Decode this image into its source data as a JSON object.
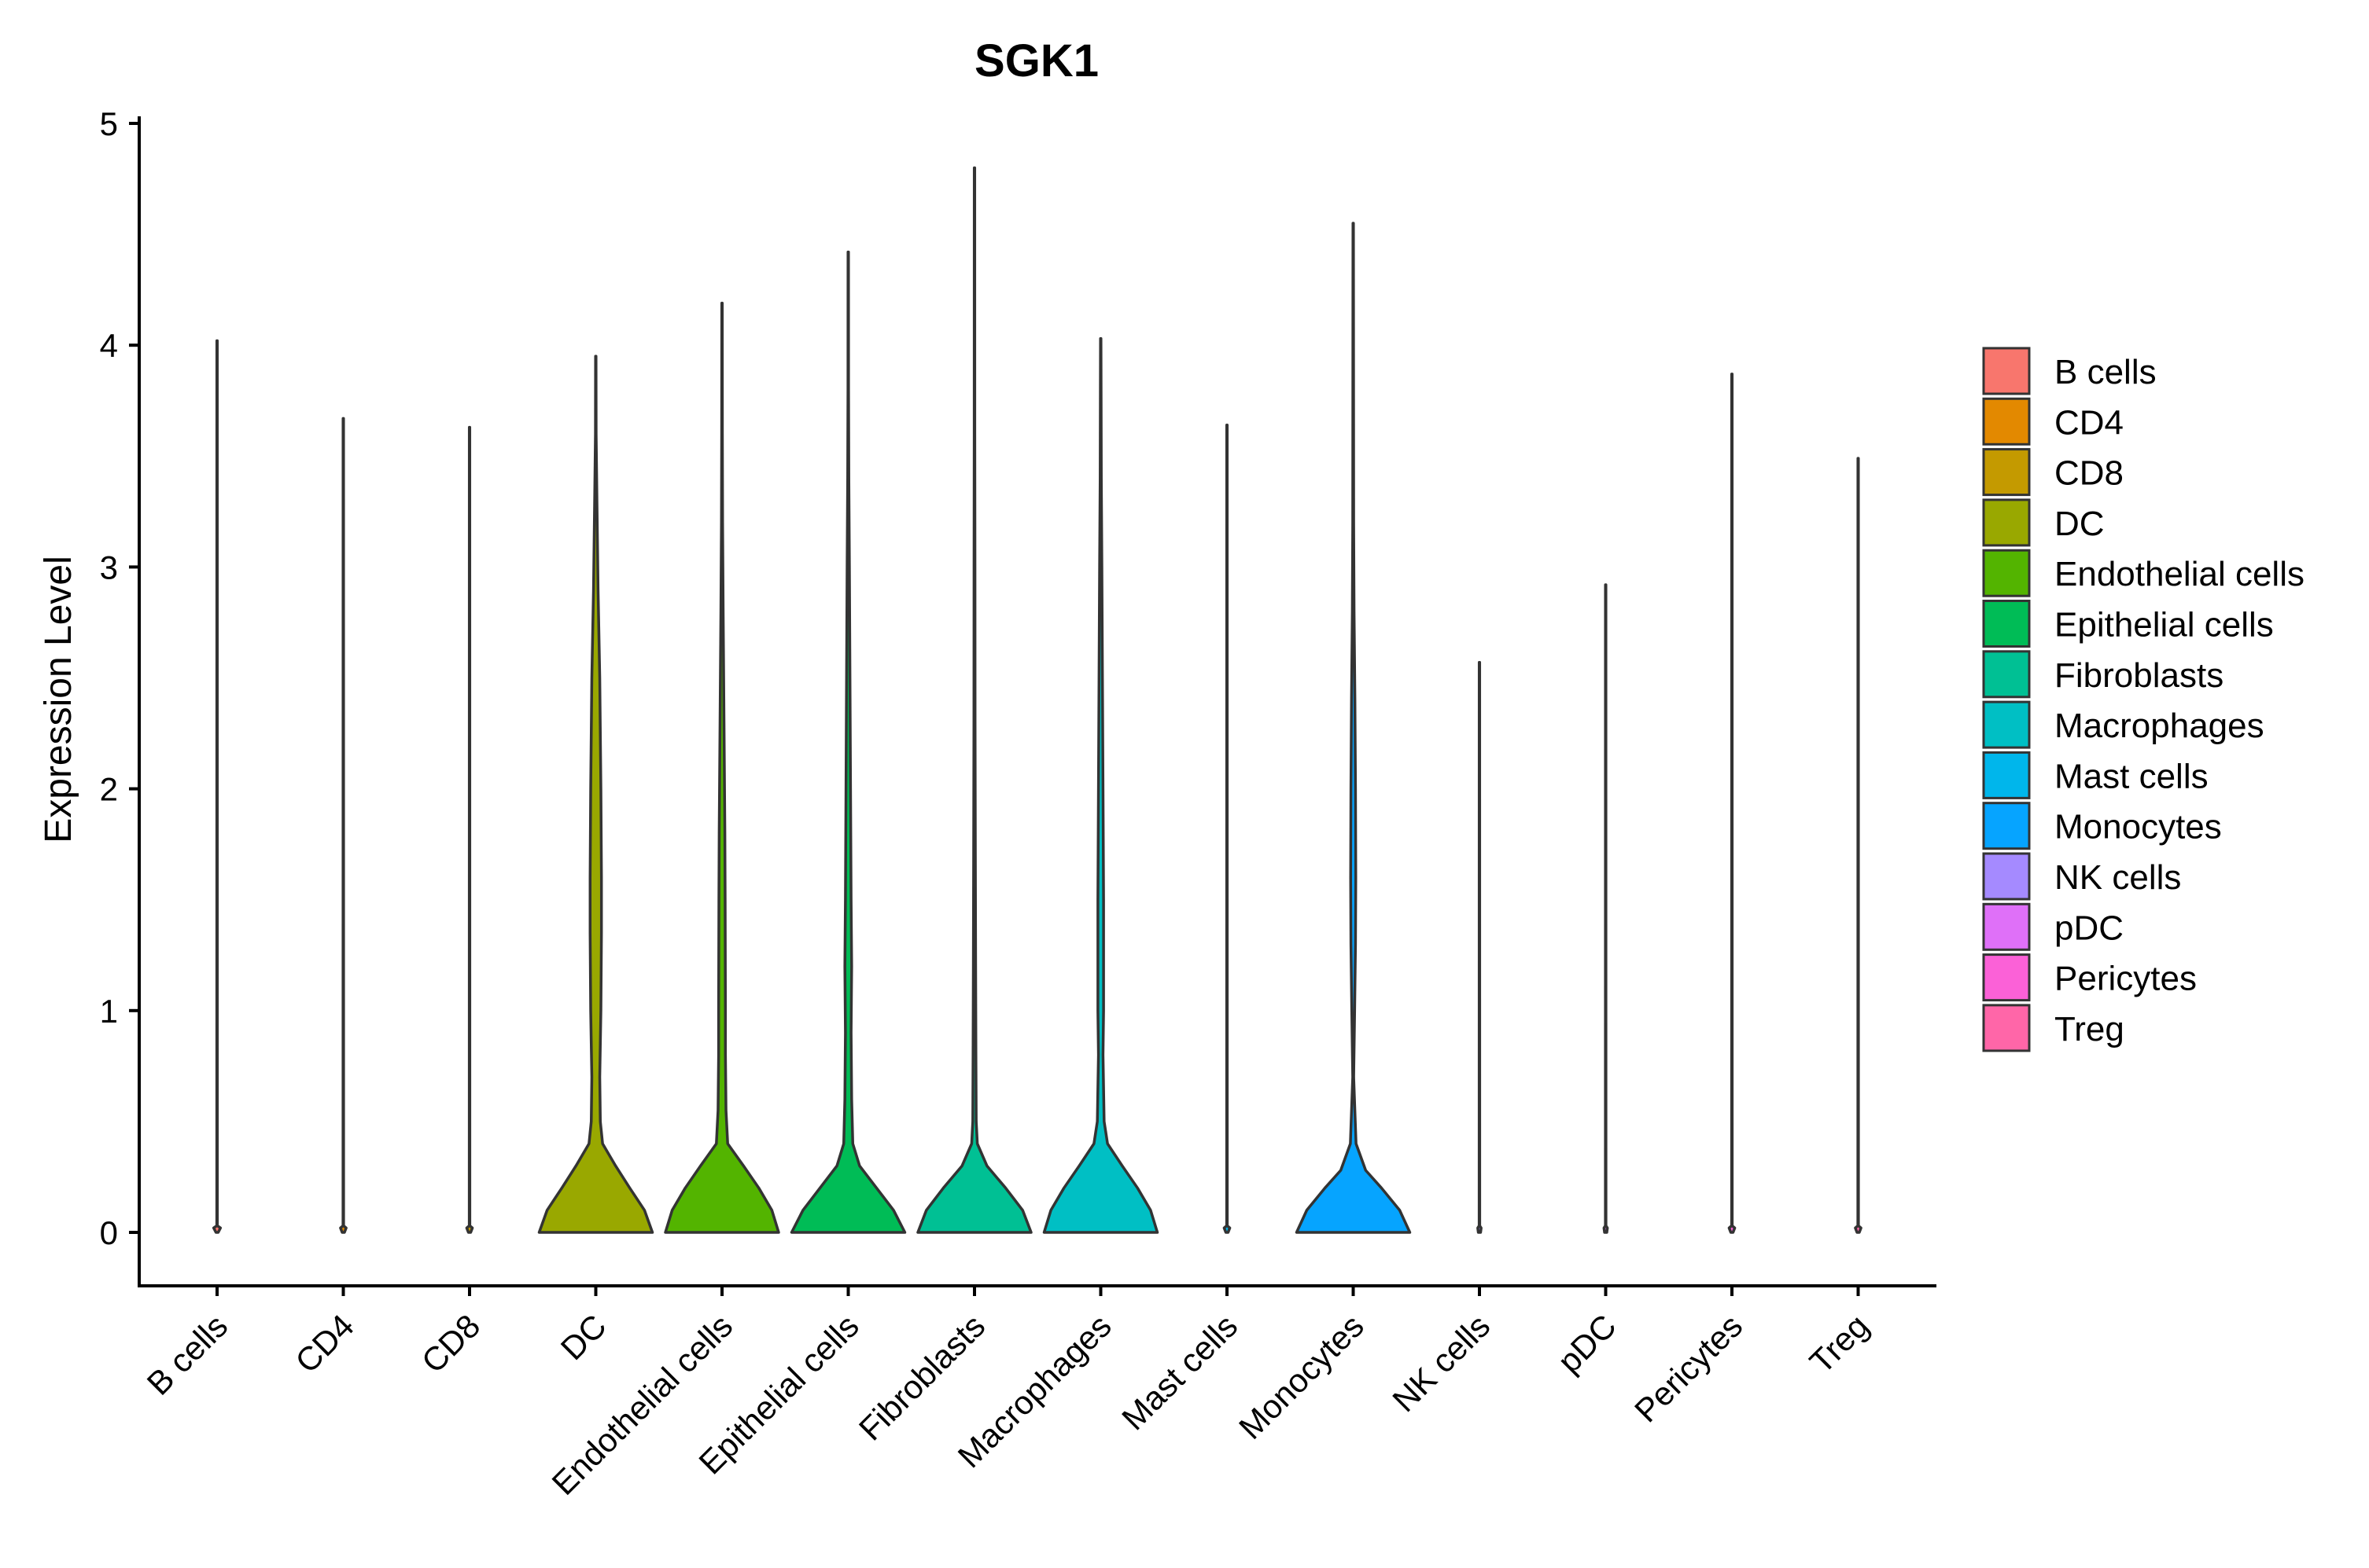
{
  "chart_data": {
    "type": "violin",
    "title": "SGK1",
    "xlabel": "",
    "ylabel": "Expression Level",
    "ylim": [
      -0.24,
      5.0
    ],
    "yticks": [
      0,
      1,
      2,
      3,
      4,
      5
    ],
    "grid": false,
    "legend_position": "right",
    "categories": [
      "B cells",
      "CD4",
      "CD8",
      "DC",
      "Endothelial cells",
      "Epithelial cells",
      "Fibroblasts",
      "Macrophages",
      "Mast cells",
      "Monocytes",
      "NK cells",
      "pDC",
      "Pericytes",
      "Treg"
    ],
    "colors": [
      "#F8766D",
      "#E38900",
      "#C49A00",
      "#99A800",
      "#53B400",
      "#00BC56",
      "#00C094",
      "#00BFC4",
      "#00B6EB",
      "#06A4FF",
      "#A58AFF",
      "#DF70F8",
      "#FB61D7",
      "#FF66A8"
    ],
    "max_values": [
      4.02,
      3.67,
      3.63,
      3.95,
      4.19,
      4.42,
      4.8,
      4.03,
      3.64,
      4.55,
      2.57,
      2.92,
      3.87,
      3.49
    ],
    "violins": [
      {
        "category": "B cells",
        "profile": [
          [
            0,
            0.02
          ],
          [
            0.02,
            0.06
          ],
          [
            0.03,
            0.005
          ],
          [
            4.02,
            0.004
          ]
        ]
      },
      {
        "category": "CD4",
        "profile": [
          [
            0,
            0.02
          ],
          [
            0.02,
            0.05
          ],
          [
            0.03,
            0.005
          ],
          [
            3.67,
            0.004
          ]
        ]
      },
      {
        "category": "CD8",
        "profile": [
          [
            0,
            0.02
          ],
          [
            0.02,
            0.05
          ],
          [
            0.03,
            0.005
          ],
          [
            3.63,
            0.004
          ]
        ]
      },
      {
        "category": "DC",
        "profile": [
          [
            0,
            1.0
          ],
          [
            0.1,
            0.86
          ],
          [
            0.2,
            0.6
          ],
          [
            0.3,
            0.35
          ],
          [
            0.4,
            0.12
          ],
          [
            0.5,
            0.08
          ],
          [
            0.7,
            0.07
          ],
          [
            1.0,
            0.09
          ],
          [
            1.35,
            0.1
          ],
          [
            1.6,
            0.1
          ],
          [
            2.0,
            0.09
          ],
          [
            2.5,
            0.07
          ],
          [
            2.9,
            0.04
          ],
          [
            3.3,
            0.02
          ],
          [
            3.6,
            0.006
          ],
          [
            3.95,
            0.004
          ]
        ]
      },
      {
        "category": "Endothelial cells",
        "profile": [
          [
            0,
            1.0
          ],
          [
            0.1,
            0.88
          ],
          [
            0.2,
            0.65
          ],
          [
            0.3,
            0.38
          ],
          [
            0.4,
            0.1
          ],
          [
            0.55,
            0.07
          ],
          [
            0.8,
            0.06
          ],
          [
            1.0,
            0.06
          ],
          [
            1.5,
            0.055
          ],
          [
            1.8,
            0.05
          ],
          [
            2.3,
            0.035
          ],
          [
            2.8,
            0.02
          ],
          [
            3.2,
            0.01
          ],
          [
            3.6,
            0.006
          ],
          [
            4.19,
            0.004
          ]
        ]
      },
      {
        "category": "Epithelial cells",
        "profile": [
          [
            0,
            1.0
          ],
          [
            0.1,
            0.8
          ],
          [
            0.2,
            0.5
          ],
          [
            0.3,
            0.2
          ],
          [
            0.4,
            0.08
          ],
          [
            0.6,
            0.06
          ],
          [
            0.9,
            0.05
          ],
          [
            1.2,
            0.06
          ],
          [
            1.5,
            0.05
          ],
          [
            2.0,
            0.04
          ],
          [
            2.5,
            0.03
          ],
          [
            3.0,
            0.02
          ],
          [
            3.4,
            0.01
          ],
          [
            3.8,
            0.005
          ],
          [
            4.42,
            0.004
          ]
        ]
      },
      {
        "category": "Fibroblasts",
        "profile": [
          [
            0,
            1.0
          ],
          [
            0.1,
            0.85
          ],
          [
            0.2,
            0.55
          ],
          [
            0.3,
            0.22
          ],
          [
            0.4,
            0.05
          ],
          [
            0.5,
            0.03
          ],
          [
            0.8,
            0.025
          ],
          [
            1.2,
            0.02
          ],
          [
            1.7,
            0.015
          ],
          [
            2.3,
            0.01
          ],
          [
            3.0,
            0.008
          ],
          [
            3.6,
            0.005
          ],
          [
            4.8,
            0.004
          ]
        ]
      },
      {
        "category": "Macrophages",
        "profile": [
          [
            0,
            1.0
          ],
          [
            0.1,
            0.88
          ],
          [
            0.2,
            0.65
          ],
          [
            0.3,
            0.38
          ],
          [
            0.4,
            0.12
          ],
          [
            0.5,
            0.06
          ],
          [
            0.8,
            0.04
          ],
          [
            1.0,
            0.05
          ],
          [
            1.5,
            0.05
          ],
          [
            2.0,
            0.04
          ],
          [
            2.5,
            0.03
          ],
          [
            3.0,
            0.02
          ],
          [
            3.4,
            0.01
          ],
          [
            4.03,
            0.004
          ]
        ]
      },
      {
        "category": "Mast cells",
        "profile": [
          [
            0,
            0.02
          ],
          [
            0.02,
            0.05
          ],
          [
            0.03,
            0.005
          ],
          [
            3.64,
            0.004
          ]
        ]
      },
      {
        "category": "Monocytes",
        "profile": [
          [
            0,
            1.0
          ],
          [
            0.1,
            0.82
          ],
          [
            0.2,
            0.5
          ],
          [
            0.28,
            0.22
          ],
          [
            0.4,
            0.05
          ],
          [
            0.7,
            0.008
          ],
          [
            1.0,
            0.025
          ],
          [
            1.3,
            0.04
          ],
          [
            1.6,
            0.045
          ],
          [
            2.0,
            0.04
          ],
          [
            2.4,
            0.03
          ],
          [
            2.8,
            0.015
          ],
          [
            3.2,
            0.008
          ],
          [
            4.55,
            0.004
          ]
        ]
      },
      {
        "category": "NK cells",
        "profile": [
          [
            0,
            0.02
          ],
          [
            0.02,
            0.03
          ],
          [
            0.03,
            0.005
          ],
          [
            2.57,
            0.004
          ]
        ]
      },
      {
        "category": "pDC",
        "profile": [
          [
            0,
            0.02
          ],
          [
            0.02,
            0.03
          ],
          [
            0.03,
            0.005
          ],
          [
            2.92,
            0.004
          ]
        ]
      },
      {
        "category": "Pericytes",
        "profile": [
          [
            0,
            0.02
          ],
          [
            0.02,
            0.05
          ],
          [
            0.03,
            0.005
          ],
          [
            3.87,
            0.004
          ]
        ]
      },
      {
        "category": "Treg",
        "profile": [
          [
            0,
            0.02
          ],
          [
            0.02,
            0.05
          ],
          [
            0.03,
            0.005
          ],
          [
            3.49,
            0.004
          ]
        ]
      }
    ],
    "legend": [
      "B cells",
      "CD4",
      "CD8",
      "DC",
      "Endothelial cells",
      "Epithelial cells",
      "Fibroblasts",
      "Macrophages",
      "Mast cells",
      "Monocytes",
      "NK cells",
      "pDC",
      "Pericytes",
      "Treg"
    ]
  }
}
